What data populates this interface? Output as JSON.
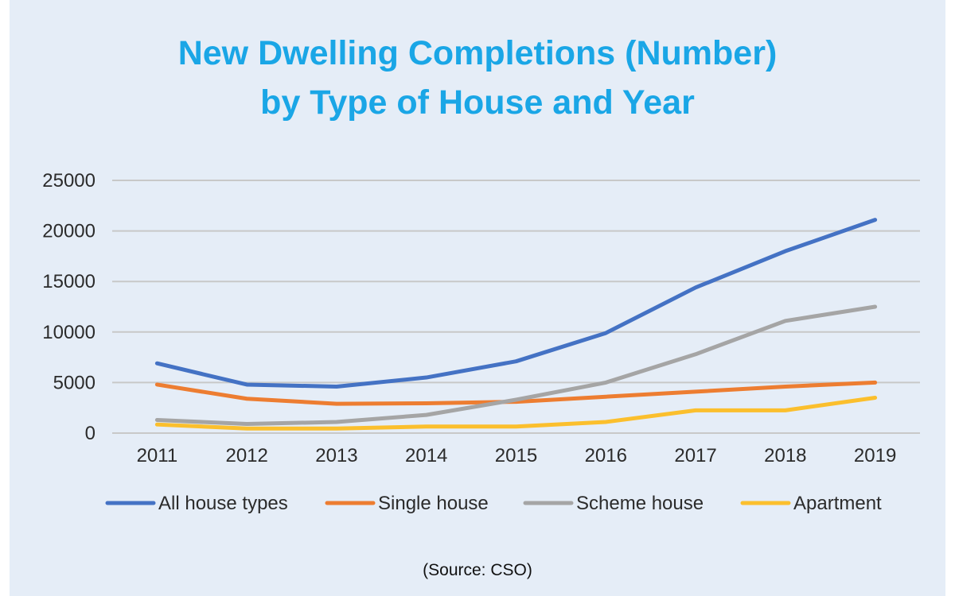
{
  "chart_data": {
    "type": "line",
    "title": [
      "New Dwelling Completions (Number)",
      "by Type of House and Year"
    ],
    "categories": [
      "2011",
      "2012",
      "2013",
      "2014",
      "2015",
      "2016",
      "2017",
      "2018",
      "2019"
    ],
    "ylim": [
      0,
      25000
    ],
    "yticks": [
      "0",
      "5000",
      "10000",
      "15000",
      "20000",
      "25000"
    ],
    "grid": true,
    "legend_position": "bottom",
    "series": [
      {
        "name": "All house types",
        "color": "#4472c4",
        "values": [
          6900,
          4800,
          4600,
          5500,
          7100,
          9900,
          14400,
          18000,
          21100
        ]
      },
      {
        "name": "Single house",
        "color": "#ed7d31",
        "values": [
          4800,
          3400,
          2900,
          2950,
          3100,
          3600,
          4100,
          4600,
          5000
        ]
      },
      {
        "name": "Scheme house",
        "color": "#a5a5a5",
        "values": [
          1300,
          900,
          1100,
          1800,
          3300,
          5000,
          7800,
          11100,
          12500
        ]
      },
      {
        "name": "Apartment",
        "color": "#fbbf2d",
        "values": [
          850,
          450,
          450,
          650,
          650,
          1100,
          2250,
          2250,
          3500
        ]
      }
    ]
  },
  "source": "(Source: CSO)"
}
